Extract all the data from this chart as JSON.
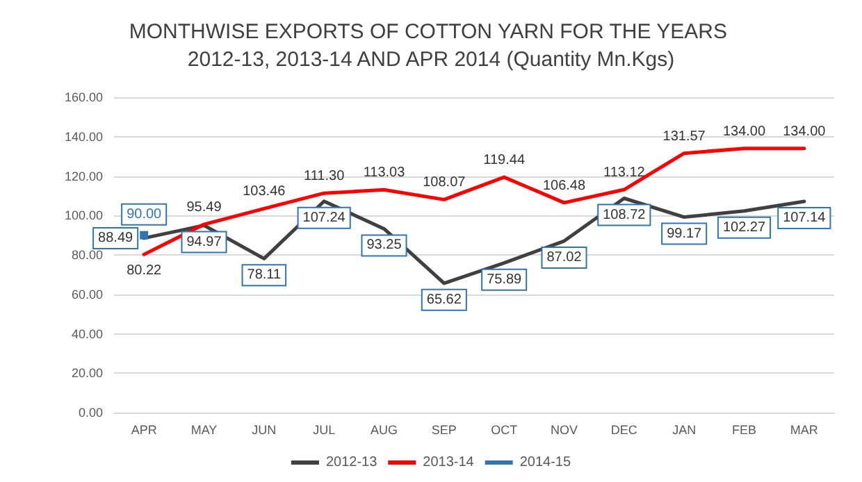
{
  "chart_data": {
    "type": "line",
    "title": "MONTHWISE EXPORTS OF COTTON YARN FOR THE YEARS 2012-13, 2013-14 AND APR 2014 (Quantity Mn.Kgs)",
    "categories": [
      "APR",
      "MAY",
      "JUN",
      "JUL",
      "AUG",
      "SEP",
      "OCT",
      "NOV",
      "DEC",
      "JAN",
      "FEB",
      "MAR"
    ],
    "series": [
      {
        "name": "2012-13",
        "color": "#404040",
        "values": [
          88.49,
          94.97,
          78.11,
          107.24,
          93.25,
          65.62,
          75.89,
          87.02,
          108.72,
          99.17,
          102.27,
          107.14
        ],
        "value_labels": [
          "88.49",
          "94.97",
          "78.11",
          "107.24",
          "93.25",
          "65.62",
          "75.89",
          "87.02",
          "108.72",
          "99.17",
          "102.27",
          "107.14"
        ]
      },
      {
        "name": "2013-14",
        "color": "#ff0000",
        "values": [
          80.22,
          95.49,
          103.46,
          111.3,
          113.03,
          108.07,
          119.44,
          106.48,
          113.12,
          131.57,
          134.0,
          134.0
        ],
        "value_labels": [
          "80.22",
          "95.49",
          "103.46",
          "111.30",
          "113.03",
          "108.07",
          "119.44",
          "106.48",
          "113.12",
          "131.57",
          "134.00",
          "134.00"
        ]
      },
      {
        "name": "2014-15",
        "color": "#2e75b6",
        "marker": "square",
        "values": [
          90.0,
          null,
          null,
          null,
          null,
          null,
          null,
          null,
          null,
          null,
          null,
          null
        ],
        "value_labels": [
          "90.00",
          null,
          null,
          null,
          null,
          null,
          null,
          null,
          null,
          null,
          null,
          null
        ]
      }
    ],
    "ylim": [
      0,
      160
    ],
    "yticks": [
      {
        "value": 0,
        "label": "0.00"
      },
      {
        "value": 20,
        "label": "20.00"
      },
      {
        "value": 40,
        "label": "40.00"
      },
      {
        "value": 60,
        "label": "60.00"
      },
      {
        "value": 80,
        "label": "80.00"
      },
      {
        "value": 100,
        "label": "100.00"
      },
      {
        "value": 120,
        "label": "120.00"
      },
      {
        "value": 140,
        "label": "140.00"
      },
      {
        "value": 160,
        "label": "160.00"
      }
    ],
    "grid": "y",
    "legend": "bottom",
    "marker": "none",
    "line_style": "solid"
  }
}
